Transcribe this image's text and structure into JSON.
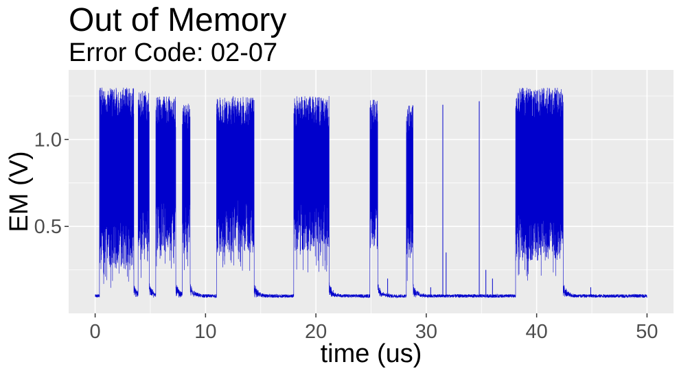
{
  "chart_data": {
    "type": "line",
    "title": "Out of Memory",
    "subtitle": "Error Code: 02-07",
    "xlabel": "time (us)",
    "ylabel": "EM (V)",
    "xlim": [
      -2.4,
      52.4
    ],
    "ylim": [
      0.0,
      1.4
    ],
    "x_ticks": [
      0,
      10,
      20,
      30,
      40,
      50
    ],
    "x_tick_labels": [
      "0",
      "10",
      "20",
      "30",
      "40",
      "50"
    ],
    "y_ticks": [
      0.5,
      1.0
    ],
    "y_tick_labels": [
      "0.5",
      "1.0"
    ],
    "grid": true,
    "legend": "none",
    "baseline": 0.1,
    "series_color": "#0000cc",
    "panel_color": "#ebebeb",
    "grid_color": "#ffffff",
    "bursts": [
      {
        "start": 0.4,
        "end": 3.5,
        "max": 1.3,
        "min": 0.25
      },
      {
        "start": 3.9,
        "end": 4.9,
        "max": 1.28,
        "min": 0.3
      },
      {
        "start": 5.5,
        "end": 7.3,
        "max": 1.25,
        "min": 0.35
      },
      {
        "start": 7.9,
        "end": 8.6,
        "max": 1.22,
        "min": 0.35
      },
      {
        "start": 11.0,
        "end": 14.4,
        "max": 1.25,
        "min": 0.35
      },
      {
        "start": 18.0,
        "end": 21.2,
        "max": 1.25,
        "min": 0.35
      },
      {
        "start": 24.9,
        "end": 25.6,
        "max": 1.23,
        "min": 0.35
      },
      {
        "start": 28.2,
        "end": 28.8,
        "max": 1.2,
        "min": 0.3
      },
      {
        "start": 38.1,
        "end": 42.4,
        "max": 1.3,
        "min": 0.3
      }
    ],
    "spikes": [
      {
        "x": 26.5,
        "peak": 0.2
      },
      {
        "x": 30.4,
        "peak": 0.15
      },
      {
        "x": 31.5,
        "peak": 1.2
      },
      {
        "x": 31.8,
        "peak": 0.35
      },
      {
        "x": 34.8,
        "peak": 1.22
      },
      {
        "x": 35.4,
        "peak": 0.25
      },
      {
        "x": 36.0,
        "peak": 0.2
      },
      {
        "x": 44.9,
        "peak": 0.15
      }
    ]
  }
}
